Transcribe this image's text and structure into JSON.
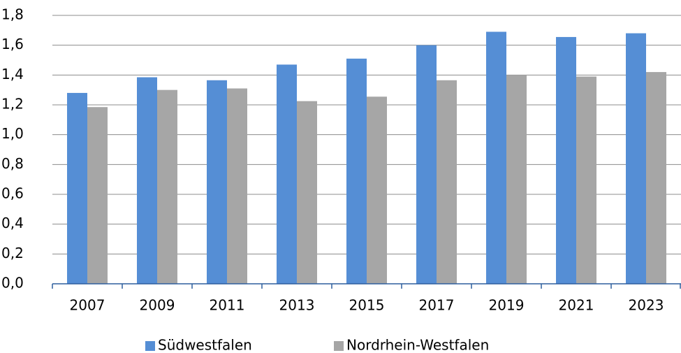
{
  "chart_data": {
    "type": "bar",
    "categories": [
      "2007",
      "2009",
      "2011",
      "2013",
      "2015",
      "2017",
      "2019",
      "2021",
      "2023"
    ],
    "series": [
      {
        "name": "Südwestfalen",
        "color": "#558ed5",
        "values": [
          1.28,
          1.385,
          1.365,
          1.47,
          1.51,
          1.6,
          1.69,
          1.655,
          1.68
        ]
      },
      {
        "name": "Nordrhein-Westfalen",
        "color": "#a6a6a6",
        "values": [
          1.185,
          1.3,
          1.31,
          1.225,
          1.255,
          1.365,
          1.4,
          1.39,
          1.42
        ]
      }
    ],
    "ylim": [
      0,
      1.8
    ],
    "yticks": [
      {
        "value": 0,
        "label": "0,0"
      },
      {
        "value": 0.2,
        "label": "0,2"
      },
      {
        "value": 0.4,
        "label": "0,4"
      },
      {
        "value": 0.6,
        "label": "0,6"
      },
      {
        "value": 0.8,
        "label": "0,8"
      },
      {
        "value": 1.0,
        "label": "1,0"
      },
      {
        "value": 1.2,
        "label": "1,2"
      },
      {
        "value": 1.4,
        "label": "1,4"
      },
      {
        "value": 1.6,
        "label": "1,6"
      },
      {
        "value": 1.8,
        "label": "1,8"
      }
    ],
    "grid": true,
    "legend": "bottom"
  }
}
